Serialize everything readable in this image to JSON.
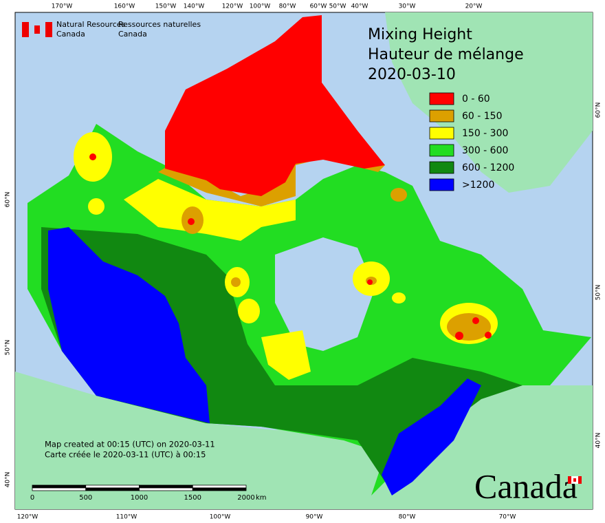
{
  "agency": {
    "en": [
      "Natural Resources",
      "Canada"
    ],
    "fr": [
      "Ressources naturelles",
      "Canada"
    ]
  },
  "title": [
    "Mixing Height",
    "Hauteur de mélange",
    "2020-03-10"
  ],
  "legend": [
    {
      "label": "0 - 60",
      "color": "#ff0000"
    },
    {
      "label": "60 - 150",
      "color": "#dca000"
    },
    {
      "label": "150 - 300",
      "color": "#ffff00"
    },
    {
      "label": "300 - 600",
      "color": "#22dd22"
    },
    {
      "label": "600 - 1200",
      "color": "#118811"
    },
    {
      "label": ">1200",
      "color": "#0000ff"
    }
  ],
  "footnote": [
    "Map created at 00:15 (UTC) on 2020-03-11",
    "Carte créée le 2020-03-11 (UTC) à 00:15"
  ],
  "scale": {
    "ticks": [
      0,
      500,
      1000,
      1500,
      2000
    ],
    "unit": "km"
  },
  "longitude_top": [
    "170°W",
    "160°W",
    "150°W",
    "140°W",
    "120°W",
    "100°W",
    "80°W",
    "60°W",
    "50°W",
    "40°W",
    "30°W",
    "20°W"
  ],
  "longitude_bottom": [
    "120°W",
    "110°W",
    "100°W",
    "90°W",
    "80°W",
    "70°W"
  ],
  "latitude_left": [
    "60°N",
    "50°N",
    "40°N"
  ],
  "latitude_right": [
    "60°N",
    "50°N",
    "40°N"
  ],
  "wordmark": "Canada"
}
